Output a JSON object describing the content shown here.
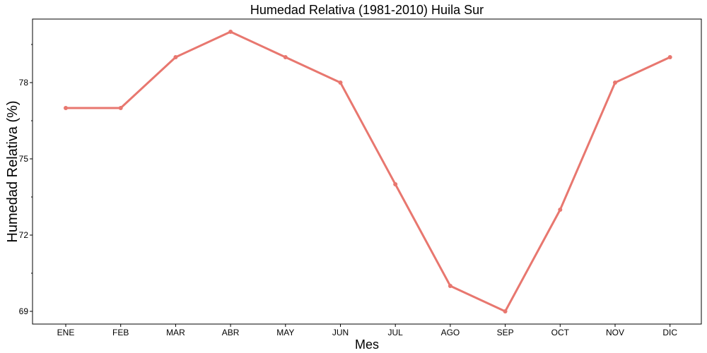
{
  "chart_data": {
    "type": "line",
    "title": "Humedad Relativa (1981-2010)  Huila Sur",
    "xlabel": "Mes",
    "ylabel": "Humedad Relativa   (%)",
    "categories": [
      "ENE",
      "FEB",
      "MAR",
      "ABR",
      "MAY",
      "JUN",
      "JUL",
      "AGO",
      "SEP",
      "OCT",
      "NOV",
      "DIC"
    ],
    "series": [
      {
        "values": [
          77,
          77,
          79,
          80,
          79,
          78,
          74,
          70,
          69,
          73,
          78,
          79
        ]
      }
    ],
    "ylim": [
      68.5,
      80.5
    ],
    "yticks": [
      69,
      72,
      75,
      78
    ],
    "yticks_labels": [
      "69",
      "72",
      "75",
      "78"
    ],
    "grid": false,
    "line_color": "#E8776F"
  }
}
